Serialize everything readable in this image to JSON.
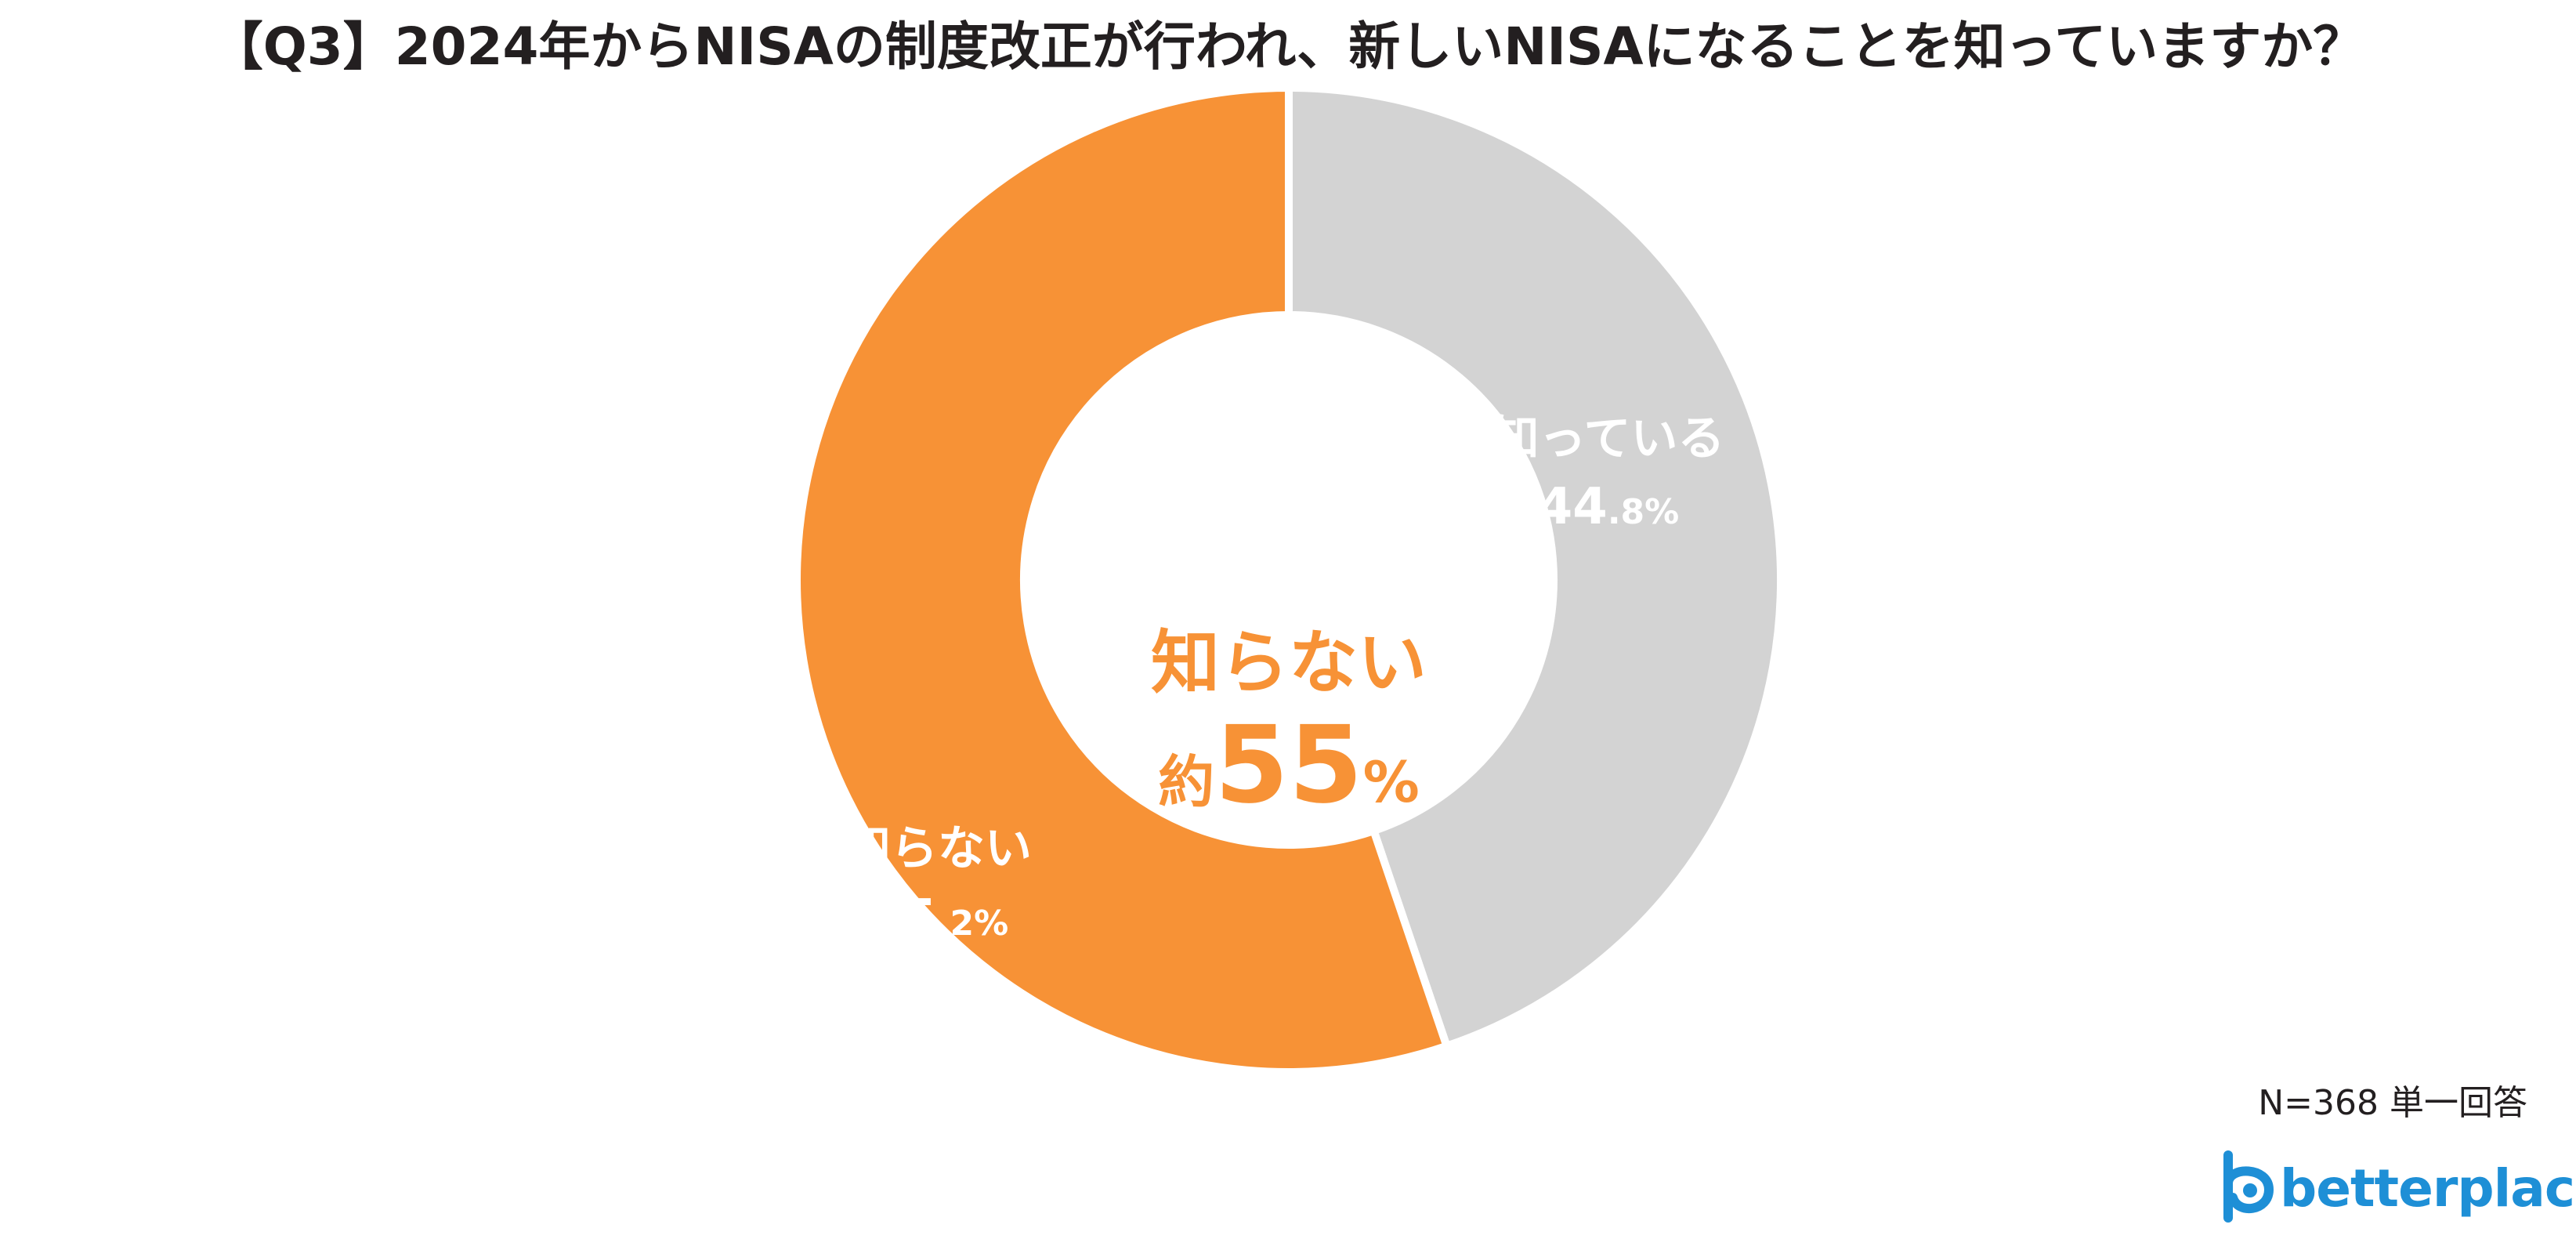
{
  "title": "【Q3】2024年からNISAの制度改正が行われ、新しいNISAになることを知っていますか？",
  "footnote": "N=368 単一回答",
  "logo_text": "betterplace",
  "colors": {
    "orange": "#f79236",
    "gray": "#d3d3d3",
    "label_white": "#ffffff",
    "title": "#231f20",
    "logo": "#1e8fd6"
  },
  "chart_data": {
    "type": "pie",
    "variant": "donut",
    "title": "【Q3】2024年からNISAの制度改正が行われ、新しいNISAになることを知っていますか？",
    "categories": [
      "知っている",
      "知らない"
    ],
    "values": [
      44.8,
      55.2
    ],
    "unit": "%",
    "labels": [
      {
        "category": "知っている",
        "int": "44",
        "dec": ".8",
        "pct": "%"
      },
      {
        "category": "知らない",
        "int": "55",
        "dec": ".2",
        "pct": "%"
      }
    ],
    "center": {
      "line1": "知らない",
      "prefix": "約",
      "number": "55",
      "pct": "%"
    },
    "legend": "none"
  }
}
